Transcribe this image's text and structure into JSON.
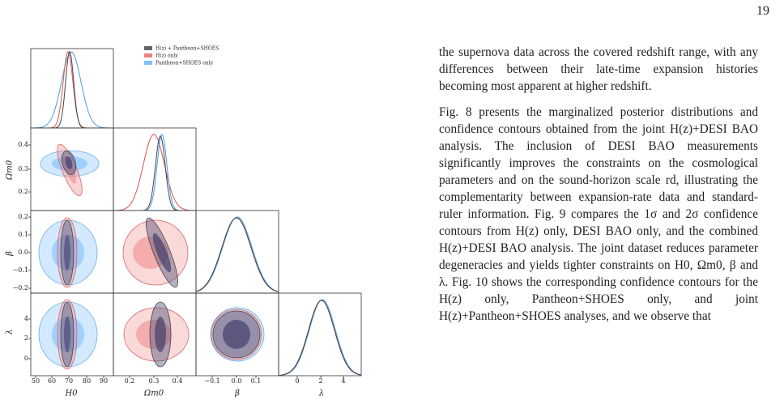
{
  "page_number": "19",
  "figure": {
    "legend": [
      "H(z) + Pantheon+SHOES",
      "H(z) only",
      "Pantheon+SHOES only"
    ],
    "x_axes": [
      {
        "label": "H0",
        "ticks": [
          "50",
          "60",
          "70",
          "80",
          "90"
        ]
      },
      {
        "label": "Ωm0",
        "ticks": [
          "0.2",
          "0.3",
          "0.4"
        ]
      },
      {
        "label": "β",
        "ticks": [
          "−0.1",
          "0.0",
          "0.1"
        ]
      },
      {
        "label": "λ",
        "ticks": [
          "0",
          "2",
          "4"
        ]
      }
    ],
    "y_axes": [
      {
        "label": "Ωm0",
        "ticks": [
          "0.4",
          "0.3",
          "0.2"
        ]
      },
      {
        "label": "β",
        "ticks": [
          "0.2",
          "0.1",
          "0.0",
          "−0.1",
          "−0.2"
        ]
      },
      {
        "label": "λ",
        "ticks": [
          "4",
          "2",
          "0"
        ]
      }
    ]
  },
  "text": {
    "paragraph": "the supernova data across the covered redshift range, with any differences between their late-time expansion histories becoming most apparent at higher redshift.",
    "bullet": "Fig. 8 presents the marginalized posterior distributions and confidence contours obtained from the joint H(z)+DESI BAO analysis. The inclusion of DESI BAO measurements significantly improves the constraints on the cosmological parameters and on the sound-horizon scale rd, illustrating the complementarity between expansion-rate data and standard-ruler information. Fig. 9 compares the 1σ and 2σ confidence contours from H(z) only, DESI BAO only, and the combined H(z)+DESI BAO analysis. The joint dataset reduces parameter degeneracies and yields tighter constraints on H0, Ωm0, β and λ. Fig. 10 shows the corresponding confidence contours for the H(z) only, Pantheon+SHOES only, and joint H(z)+Pantheon+SHOES analyses, and we observe that"
  }
}
